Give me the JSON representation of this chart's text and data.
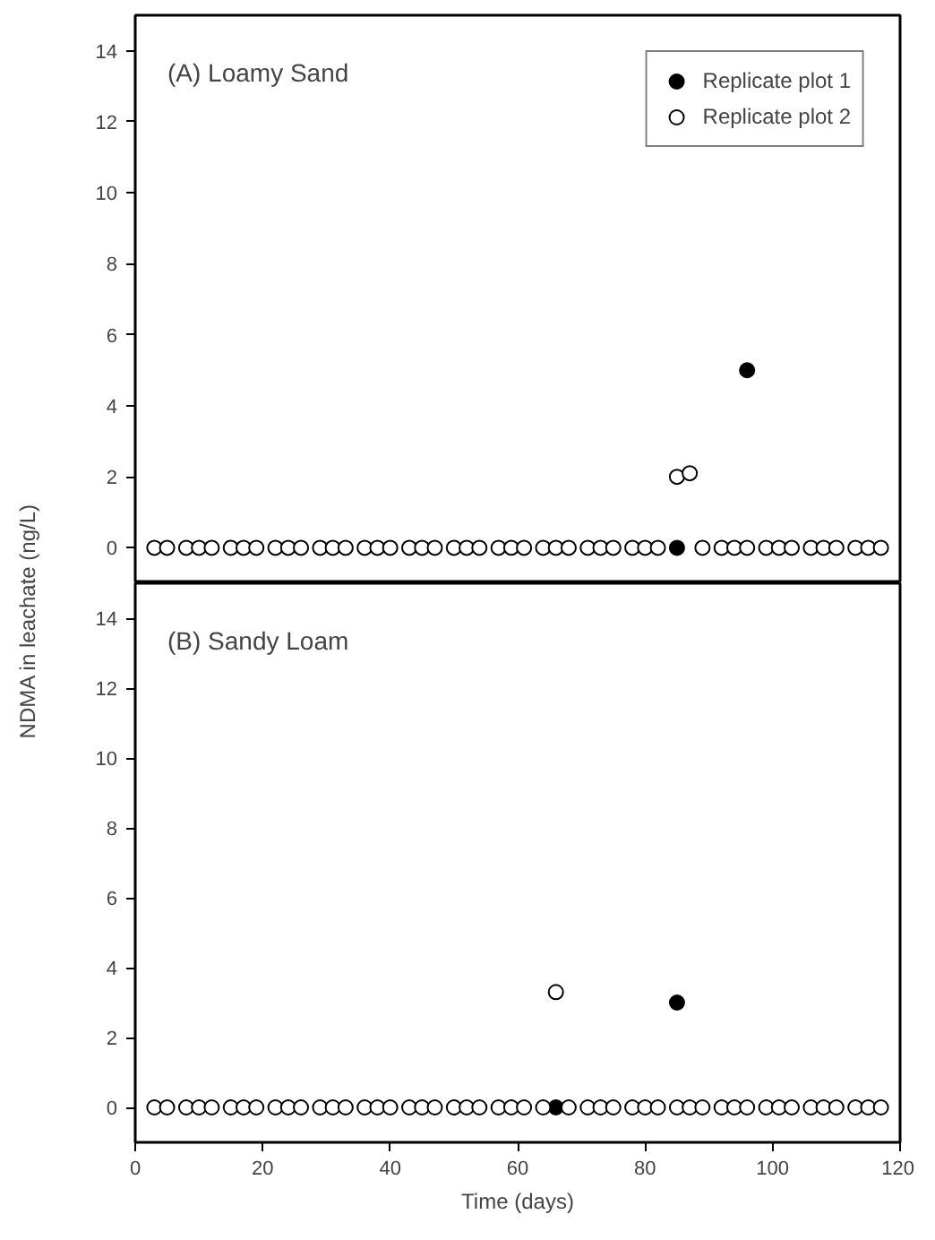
{
  "chart_data": [
    {
      "type": "scatter",
      "annotations": [
        "(A) Loamy Sand"
      ],
      "ylabel": "NDMA in leachate (ng/L)",
      "xlim": [
        0,
        120
      ],
      "xticks": [
        0,
        20,
        40,
        60,
        80,
        100,
        120
      ],
      "ylim": [
        -1,
        15
      ],
      "yticks": [
        0,
        2,
        4,
        6,
        8,
        10,
        12,
        14
      ],
      "tick_labels": "y",
      "marker": "circle",
      "legend": "top right",
      "grid": false,
      "series": [
        {
          "name": "Replicate plot 1",
          "color": "#000000",
          "x": [
            85,
            96
          ],
          "values": [
            0,
            5
          ]
        },
        {
          "name": "Replicate plot 2",
          "color": "#000000",
          "x": [
            3,
            5,
            8,
            10,
            12,
            15,
            17,
            19,
            22,
            24,
            26,
            29,
            31,
            33,
            36,
            38,
            40,
            43,
            45,
            47,
            50,
            52,
            54,
            57,
            59,
            61,
            64,
            66,
            68,
            71,
            73,
            75,
            78,
            80,
            82,
            85,
            87,
            89,
            92,
            94,
            96,
            99,
            101,
            103,
            106,
            108,
            110,
            113,
            115,
            117
          ],
          "values": [
            0,
            0,
            0,
            0,
            0,
            0,
            0,
            0,
            0,
            0,
            0,
            0,
            0,
            0,
            0,
            0,
            0,
            0,
            0,
            0,
            0,
            0,
            0,
            0,
            0,
            0,
            0,
            0,
            0,
            0,
            0,
            0,
            0,
            0,
            0,
            2,
            2.1,
            0,
            0,
            0,
            0,
            0,
            0,
            0,
            0,
            0,
            0,
            0,
            0,
            0
          ]
        }
      ]
    },
    {
      "type": "scatter",
      "annotations": [
        "(B) Sandy Loam"
      ],
      "xlabel": "Time (days)",
      "xlim": [
        0,
        120
      ],
      "xticks": [
        0,
        20,
        40,
        60,
        80,
        100,
        120
      ],
      "ylim": [
        -1,
        15
      ],
      "yticks": [
        0,
        2,
        4,
        6,
        8,
        10,
        12,
        14
      ],
      "marker": "circle",
      "legend": false,
      "grid": false,
      "series": [
        {
          "color": "#000000",
          "x": [
            66,
            85
          ],
          "values": [
            0,
            3
          ]
        },
        {
          "color": "#000000",
          "x": [
            3,
            5,
            8,
            10,
            12,
            15,
            17,
            19,
            22,
            24,
            26,
            29,
            31,
            33,
            36,
            38,
            40,
            43,
            45,
            47,
            50,
            52,
            54,
            57,
            59,
            61,
            64,
            66,
            68,
            71,
            73,
            75,
            78,
            80,
            82,
            85,
            87,
            89,
            92,
            94,
            96,
            99,
            101,
            103,
            106,
            108,
            110,
            113,
            115,
            117
          ],
          "values": [
            0,
            0,
            0,
            0,
            0,
            0,
            0,
            0,
            0,
            0,
            0,
            0,
            0,
            0,
            0,
            0,
            0,
            0,
            0,
            0,
            0,
            0,
            0,
            0,
            0,
            0,
            0,
            3.3,
            0,
            0,
            0,
            0,
            0,
            0,
            0,
            0,
            0,
            0,
            0,
            0,
            0,
            0,
            0,
            0,
            0,
            0,
            0,
            0,
            0,
            0
          ]
        }
      ]
    }
  ]
}
